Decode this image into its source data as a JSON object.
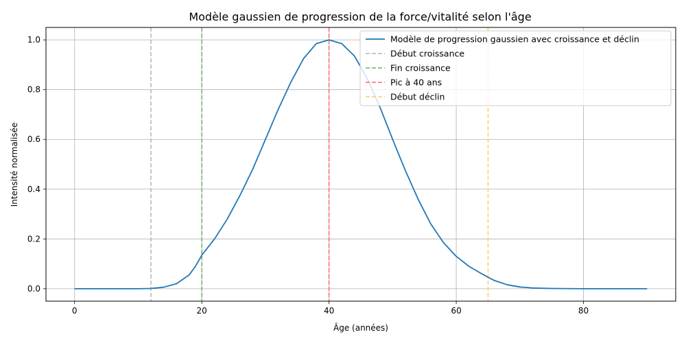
{
  "chart_data": {
    "type": "line",
    "title": "Modèle gaussien de progression de la force/vitalité selon l'âge",
    "xlabel": "Âge (années)",
    "ylabel": "Intensité normalisée",
    "xlim": [
      -4.5,
      94.5
    ],
    "ylim": [
      -0.05,
      1.05
    ],
    "x_ticks": [
      0,
      20,
      40,
      60,
      80
    ],
    "y_ticks": [
      0.0,
      0.2,
      0.4,
      0.6,
      0.8,
      1.0
    ],
    "x_tick_labels": [
      "0",
      "20",
      "40",
      "60",
      "80"
    ],
    "y_tick_labels": [
      "0.0",
      "0.2",
      "0.4",
      "0.6",
      "0.8",
      "1.0"
    ],
    "grid": true,
    "legend_position": "top-right",
    "series": [
      {
        "name": "Modèle de progression gaussien avec croissance et déclin",
        "color": "#1f77b4",
        "x": [
          0,
          10,
          12,
          14,
          16,
          18,
          19,
          20,
          22,
          24,
          26,
          28,
          30,
          32,
          34,
          36,
          38,
          40,
          42,
          44,
          46,
          48,
          50,
          52,
          54,
          56,
          58,
          60,
          62,
          64,
          65,
          66,
          68,
          70,
          72,
          75,
          80,
          85,
          90
        ],
        "y": [
          0.0,
          0.0,
          0.001,
          0.006,
          0.02,
          0.055,
          0.09,
          0.135,
          0.2,
          0.28,
          0.375,
          0.48,
          0.6,
          0.72,
          0.83,
          0.925,
          0.985,
          1.0,
          0.985,
          0.935,
          0.845,
          0.73,
          0.6,
          0.475,
          0.36,
          0.26,
          0.185,
          0.13,
          0.09,
          0.06,
          0.046,
          0.033,
          0.016,
          0.007,
          0.003,
          0.001,
          0.0,
          0.0,
          0.0
        ]
      }
    ],
    "reference_lines": [
      {
        "name": "Début croissance",
        "x": 12,
        "color": "#b3b3b3"
      },
      {
        "name": "Fin croissance",
        "x": 20,
        "color": "#66b366"
      },
      {
        "name": "Pic à 40 ans",
        "x": 40,
        "color": "#ff6666"
      },
      {
        "name": "Début déclin",
        "x": 65,
        "color": "#ffcc66"
      }
    ]
  }
}
